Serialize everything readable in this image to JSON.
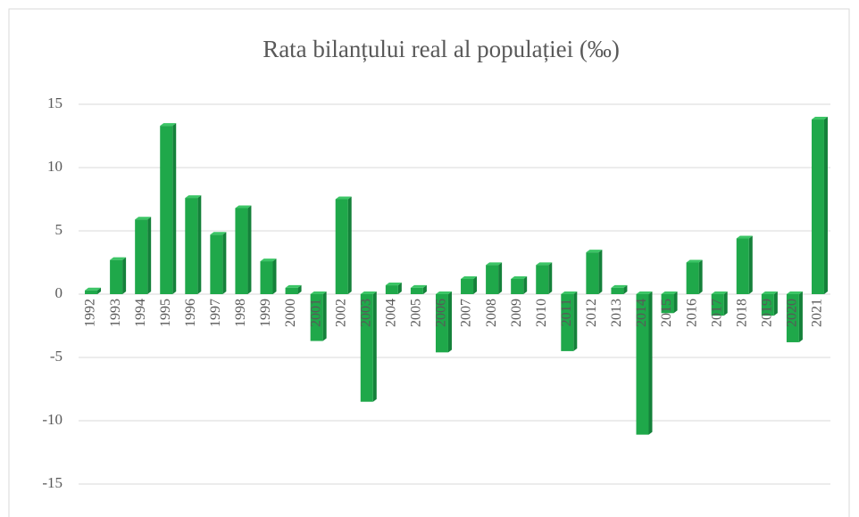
{
  "chart_data": {
    "type": "bar",
    "title": "Rata bilanțului real al populației (‰)",
    "categories": [
      "1992",
      "1993",
      "1994",
      "1995",
      "1996",
      "1997",
      "1998",
      "1999",
      "2000",
      "2001",
      "2002",
      "2003",
      "2004",
      "2005",
      "2006",
      "2007",
      "2008",
      "2009",
      "2010",
      "2011",
      "2012",
      "2013",
      "2014",
      "2015",
      "2016",
      "2017",
      "2018",
      "2019",
      "2020",
      "2021"
    ],
    "values": [
      0.3,
      2.7,
      5.9,
      13.3,
      7.6,
      4.7,
      6.8,
      2.6,
      0.5,
      -3.7,
      7.5,
      -8.5,
      0.7,
      0.5,
      -4.6,
      1.2,
      2.3,
      1.2,
      2.3,
      -4.5,
      3.3,
      0.5,
      -11.1,
      -1.5,
      2.5,
      -1.7,
      4.4,
      -1.7,
      -3.8,
      13.8
    ],
    "color": "#1fa84a",
    "ylim": [
      -15,
      15
    ],
    "yticks": [
      -15,
      -10,
      -5,
      0,
      5,
      10,
      15
    ],
    "grid": true
  }
}
